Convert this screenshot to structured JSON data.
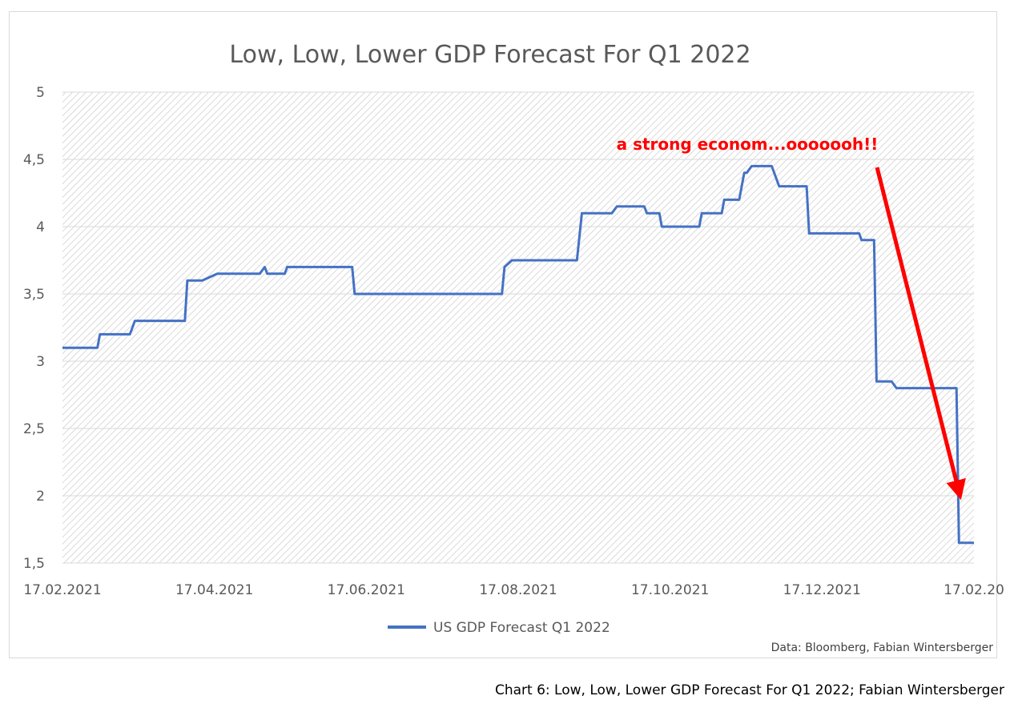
{
  "caption": "Chart 6: Low, Low, Lower GDP Forecast For Q1 2022; Fabian Wintersberger",
  "source_note": "Data: Bloomberg, Fabian Wintersberger",
  "annotation": {
    "text": "a strong econom...ooooooh!!",
    "color": "#ff0000"
  },
  "colors": {
    "series": "#4472c4",
    "title": "#595959",
    "axis_text": "#595959",
    "grid": "#d9d9d9",
    "hatch": "#d0d0d0"
  },
  "chart_data": {
    "type": "line",
    "title": "Low, Low, Lower GDP Forecast For Q1 2022",
    "xlabel": "",
    "ylabel": "",
    "ylim": [
      1.5,
      5
    ],
    "yticks": [
      "5",
      "4,5",
      "4",
      "3,5",
      "3",
      "2,5",
      "2",
      "1,5"
    ],
    "xticks": [
      "17.02.2021",
      "17.04.2021",
      "17.06.2021",
      "17.08.2021",
      "17.10.2021",
      "17.12.2021",
      "17.02.20"
    ],
    "xrange": [
      "2021-02-17",
      "2022-02-17"
    ],
    "grid": true,
    "legend_position": "bottom",
    "series": [
      {
        "name": "US GDP Forecast Q1 2022",
        "points": [
          [
            "2021-02-17",
            3.1
          ],
          [
            "2021-03-03",
            3.1
          ],
          [
            "2021-03-04",
            3.2
          ],
          [
            "2021-03-16",
            3.2
          ],
          [
            "2021-03-18",
            3.3
          ],
          [
            "2021-04-07",
            3.3
          ],
          [
            "2021-04-08",
            3.6
          ],
          [
            "2021-04-14",
            3.6
          ],
          [
            "2021-04-20",
            3.65
          ],
          [
            "2021-05-07",
            3.65
          ],
          [
            "2021-05-09",
            3.7
          ],
          [
            "2021-05-10",
            3.65
          ],
          [
            "2021-05-17",
            3.65
          ],
          [
            "2021-05-18",
            3.7
          ],
          [
            "2021-06-13",
            3.7
          ],
          [
            "2021-06-14",
            3.5
          ],
          [
            "2021-08-12",
            3.5
          ],
          [
            "2021-08-13",
            3.7
          ],
          [
            "2021-08-16",
            3.75
          ],
          [
            "2021-09-11",
            3.75
          ],
          [
            "2021-09-13",
            4.1
          ],
          [
            "2021-09-25",
            4.1
          ],
          [
            "2021-09-27",
            4.15
          ],
          [
            "2021-10-08",
            4.15
          ],
          [
            "2021-10-09",
            4.1
          ],
          [
            "2021-10-14",
            4.1
          ],
          [
            "2021-10-15",
            4.0
          ],
          [
            "2021-10-30",
            4.0
          ],
          [
            "2021-10-31",
            4.1
          ],
          [
            "2021-11-08",
            4.1
          ],
          [
            "2021-11-09",
            4.2
          ],
          [
            "2021-11-15",
            4.2
          ],
          [
            "2021-11-17",
            4.4
          ],
          [
            "2021-11-18",
            4.4
          ],
          [
            "2021-11-20",
            4.45
          ],
          [
            "2021-11-28",
            4.45
          ],
          [
            "2021-12-01",
            4.3
          ],
          [
            "2021-12-12",
            4.3
          ],
          [
            "2021-12-13",
            3.95
          ],
          [
            "2022-01-02",
            3.95
          ],
          [
            "2022-01-03",
            3.9
          ],
          [
            "2022-01-08",
            3.9
          ],
          [
            "2022-01-09",
            2.85
          ],
          [
            "2022-01-15",
            2.85
          ],
          [
            "2022-01-17",
            2.8
          ],
          [
            "2022-02-10",
            2.8
          ],
          [
            "2022-02-11",
            1.65
          ],
          [
            "2022-02-17",
            1.65
          ]
        ]
      }
    ]
  }
}
